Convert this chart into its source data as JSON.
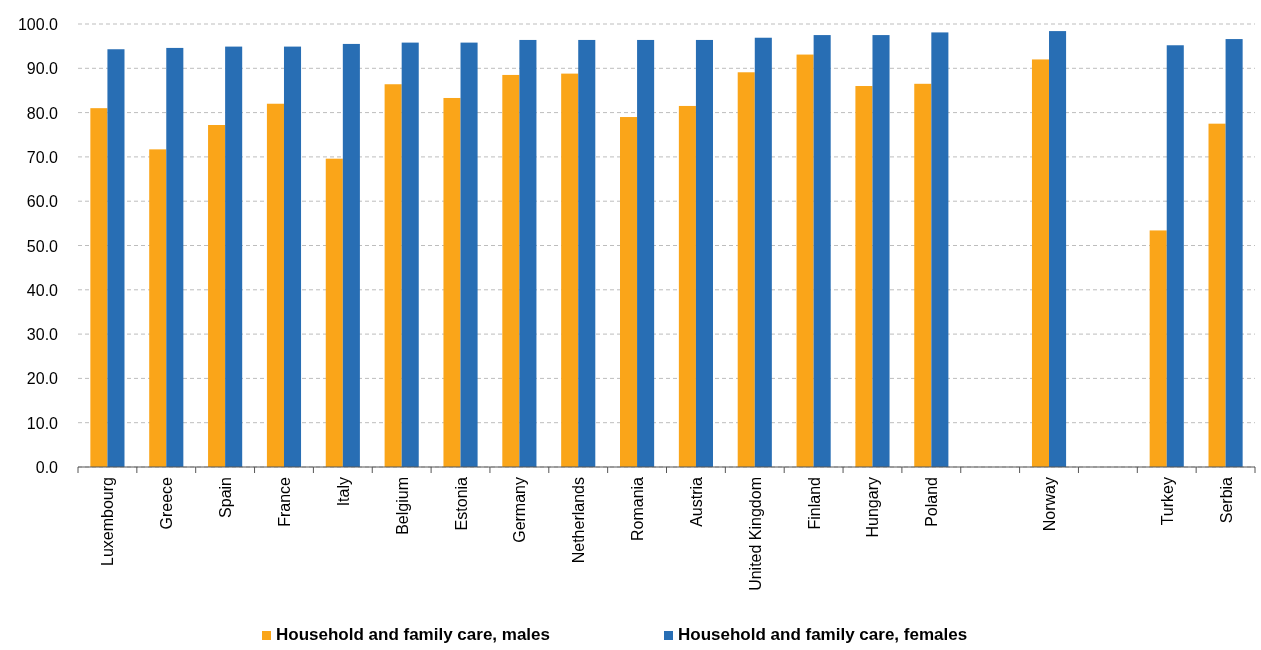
{
  "chart_data": {
    "type": "bar",
    "categories": [
      "Luxembourg",
      "Greece",
      "Spain",
      "France",
      "Italy",
      "Belgium",
      "Estonia",
      "Germany",
      "Netherlands",
      "Romania",
      "Austria",
      "United Kingdom",
      "Finland",
      "Hungary",
      "Poland",
      null,
      "Norway",
      null,
      "Turkey",
      "Serbia"
    ],
    "series": [
      {
        "name": "Household and family care, males",
        "color": "#faa519",
        "values": [
          81.0,
          71.7,
          77.2,
          82.0,
          69.6,
          86.4,
          83.3,
          88.5,
          88.8,
          79.0,
          81.5,
          89.1,
          93.1,
          86.0,
          86.5,
          null,
          92.0,
          null,
          53.4,
          77.5
        ]
      },
      {
        "name": "Household and family care, females",
        "color": "#286eb4",
        "values": [
          94.3,
          94.6,
          94.9,
          94.9,
          95.5,
          95.8,
          95.8,
          96.4,
          96.4,
          96.4,
          96.4,
          96.9,
          97.5,
          97.5,
          98.1,
          null,
          98.4,
          null,
          95.2,
          96.6
        ]
      }
    ],
    "ylim": [
      0,
      100
    ],
    "yticks": [
      {
        "value": 0,
        "label": "0.0"
      },
      {
        "value": 10,
        "label": "10.0"
      },
      {
        "value": 20,
        "label": "20.0"
      },
      {
        "value": 30,
        "label": "30.0"
      },
      {
        "value": 40,
        "label": "40.0"
      },
      {
        "value": 50,
        "label": "50.0"
      },
      {
        "value": 60,
        "label": "60.0"
      },
      {
        "value": 70,
        "label": "70.0"
      },
      {
        "value": 80,
        "label": "80.0"
      },
      {
        "value": 90,
        "label": "90.0"
      },
      {
        "value": 100,
        "label": "100.0"
      }
    ],
    "grid": "y",
    "legend": "bottom"
  }
}
